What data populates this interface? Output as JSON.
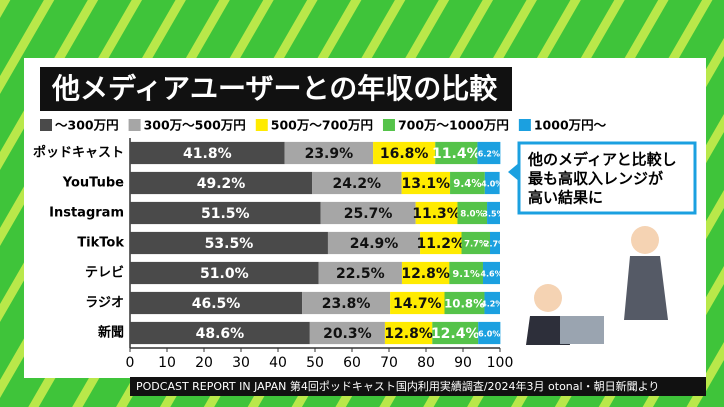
{
  "chart_data": {
    "type": "stacked-bar-horizontal",
    "title": "他メディアユーザーとの年収の比較",
    "categories": [
      "ポッドキャスト",
      "YouTube",
      "Instagram",
      "TikTok",
      "テレビ",
      "ラジオ",
      "新聞"
    ],
    "series": [
      {
        "name": "～300万円",
        "color": "#4a4a4a",
        "values": [
          41.8,
          49.2,
          51.5,
          53.5,
          51.0,
          46.5,
          48.6
        ],
        "value_labels": [
          "41.8%",
          "49.2%",
          "51.5%",
          "53.5%",
          "51.0%",
          "46.5%",
          "48.6%"
        ]
      },
      {
        "name": "300万～500万円",
        "color": "#a6a6a6",
        "values": [
          23.9,
          24.2,
          25.7,
          24.9,
          22.5,
          23.8,
          20.3
        ],
        "value_labels": [
          "23.9%",
          "24.2%",
          "25.7%",
          "24.9%",
          "22.5%",
          "23.8%",
          "20.3%"
        ]
      },
      {
        "name": "500万～700万円",
        "color": "#ffeb00",
        "values": [
          16.8,
          13.1,
          11.3,
          11.2,
          12.8,
          14.7,
          12.8
        ],
        "value_labels": [
          "16.8%",
          "13.1%",
          "11.3%",
          "11.2%",
          "12.8%",
          "14.7%",
          "12.8%"
        ]
      },
      {
        "name": "700万～1000万円",
        "color": "#55c34a",
        "values": [
          11.4,
          9.4,
          8.0,
          7.7,
          9.1,
          10.8,
          12.4
        ],
        "value_labels": [
          "11.4%",
          "9.4%",
          "8.0%",
          "7.7%",
          "9.1%",
          "10.8%",
          "12.4%"
        ]
      },
      {
        "name": "1000万円～",
        "color": "#1ba0e0",
        "values": [
          6.2,
          4.0,
          3.5,
          2.7,
          4.6,
          4.2,
          6.0
        ],
        "value_labels": [
          "6.2%",
          "4.0%",
          "3.5%",
          "2.7%",
          "4.6%",
          "4.2%",
          "6.0%"
        ]
      }
    ],
    "xlim": [
      0,
      100
    ],
    "xticks": [
      0,
      10,
      20,
      30,
      40,
      50,
      60,
      70,
      80,
      90,
      100
    ],
    "annotation": [
      "他のメディアと比較し",
      "最も高収入レンジが",
      "高い結果に"
    ],
    "source": "PODCAST REPORT IN JAPAN 第4回ポッドキャスト国内利用実績調査/2024年3月 otonal・朝日新聞より"
  }
}
